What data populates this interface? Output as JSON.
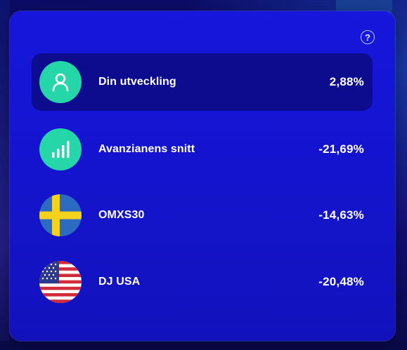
{
  "help": {
    "glyph": "?",
    "icon": "question-circle-icon"
  },
  "rows": [
    {
      "label": "Din utveckling",
      "value": "2,88%",
      "icon": "person-icon",
      "highlighted": true
    },
    {
      "label": "Avanzianens snitt",
      "value": "-21,69%",
      "icon": "signal-bars-icon",
      "highlighted": false
    },
    {
      "label": "OMXS30",
      "value": "-14,63%",
      "icon": "sweden-flag-icon",
      "highlighted": false
    },
    {
      "label": "DJ USA",
      "value": "-20,48%",
      "icon": "usa-flag-icon",
      "highlighted": false
    }
  ],
  "colors": {
    "card": "#1414cc",
    "highlight_row": "#0d0c8e",
    "icon_teal": "#24d6a8",
    "text": "#ffffff"
  }
}
